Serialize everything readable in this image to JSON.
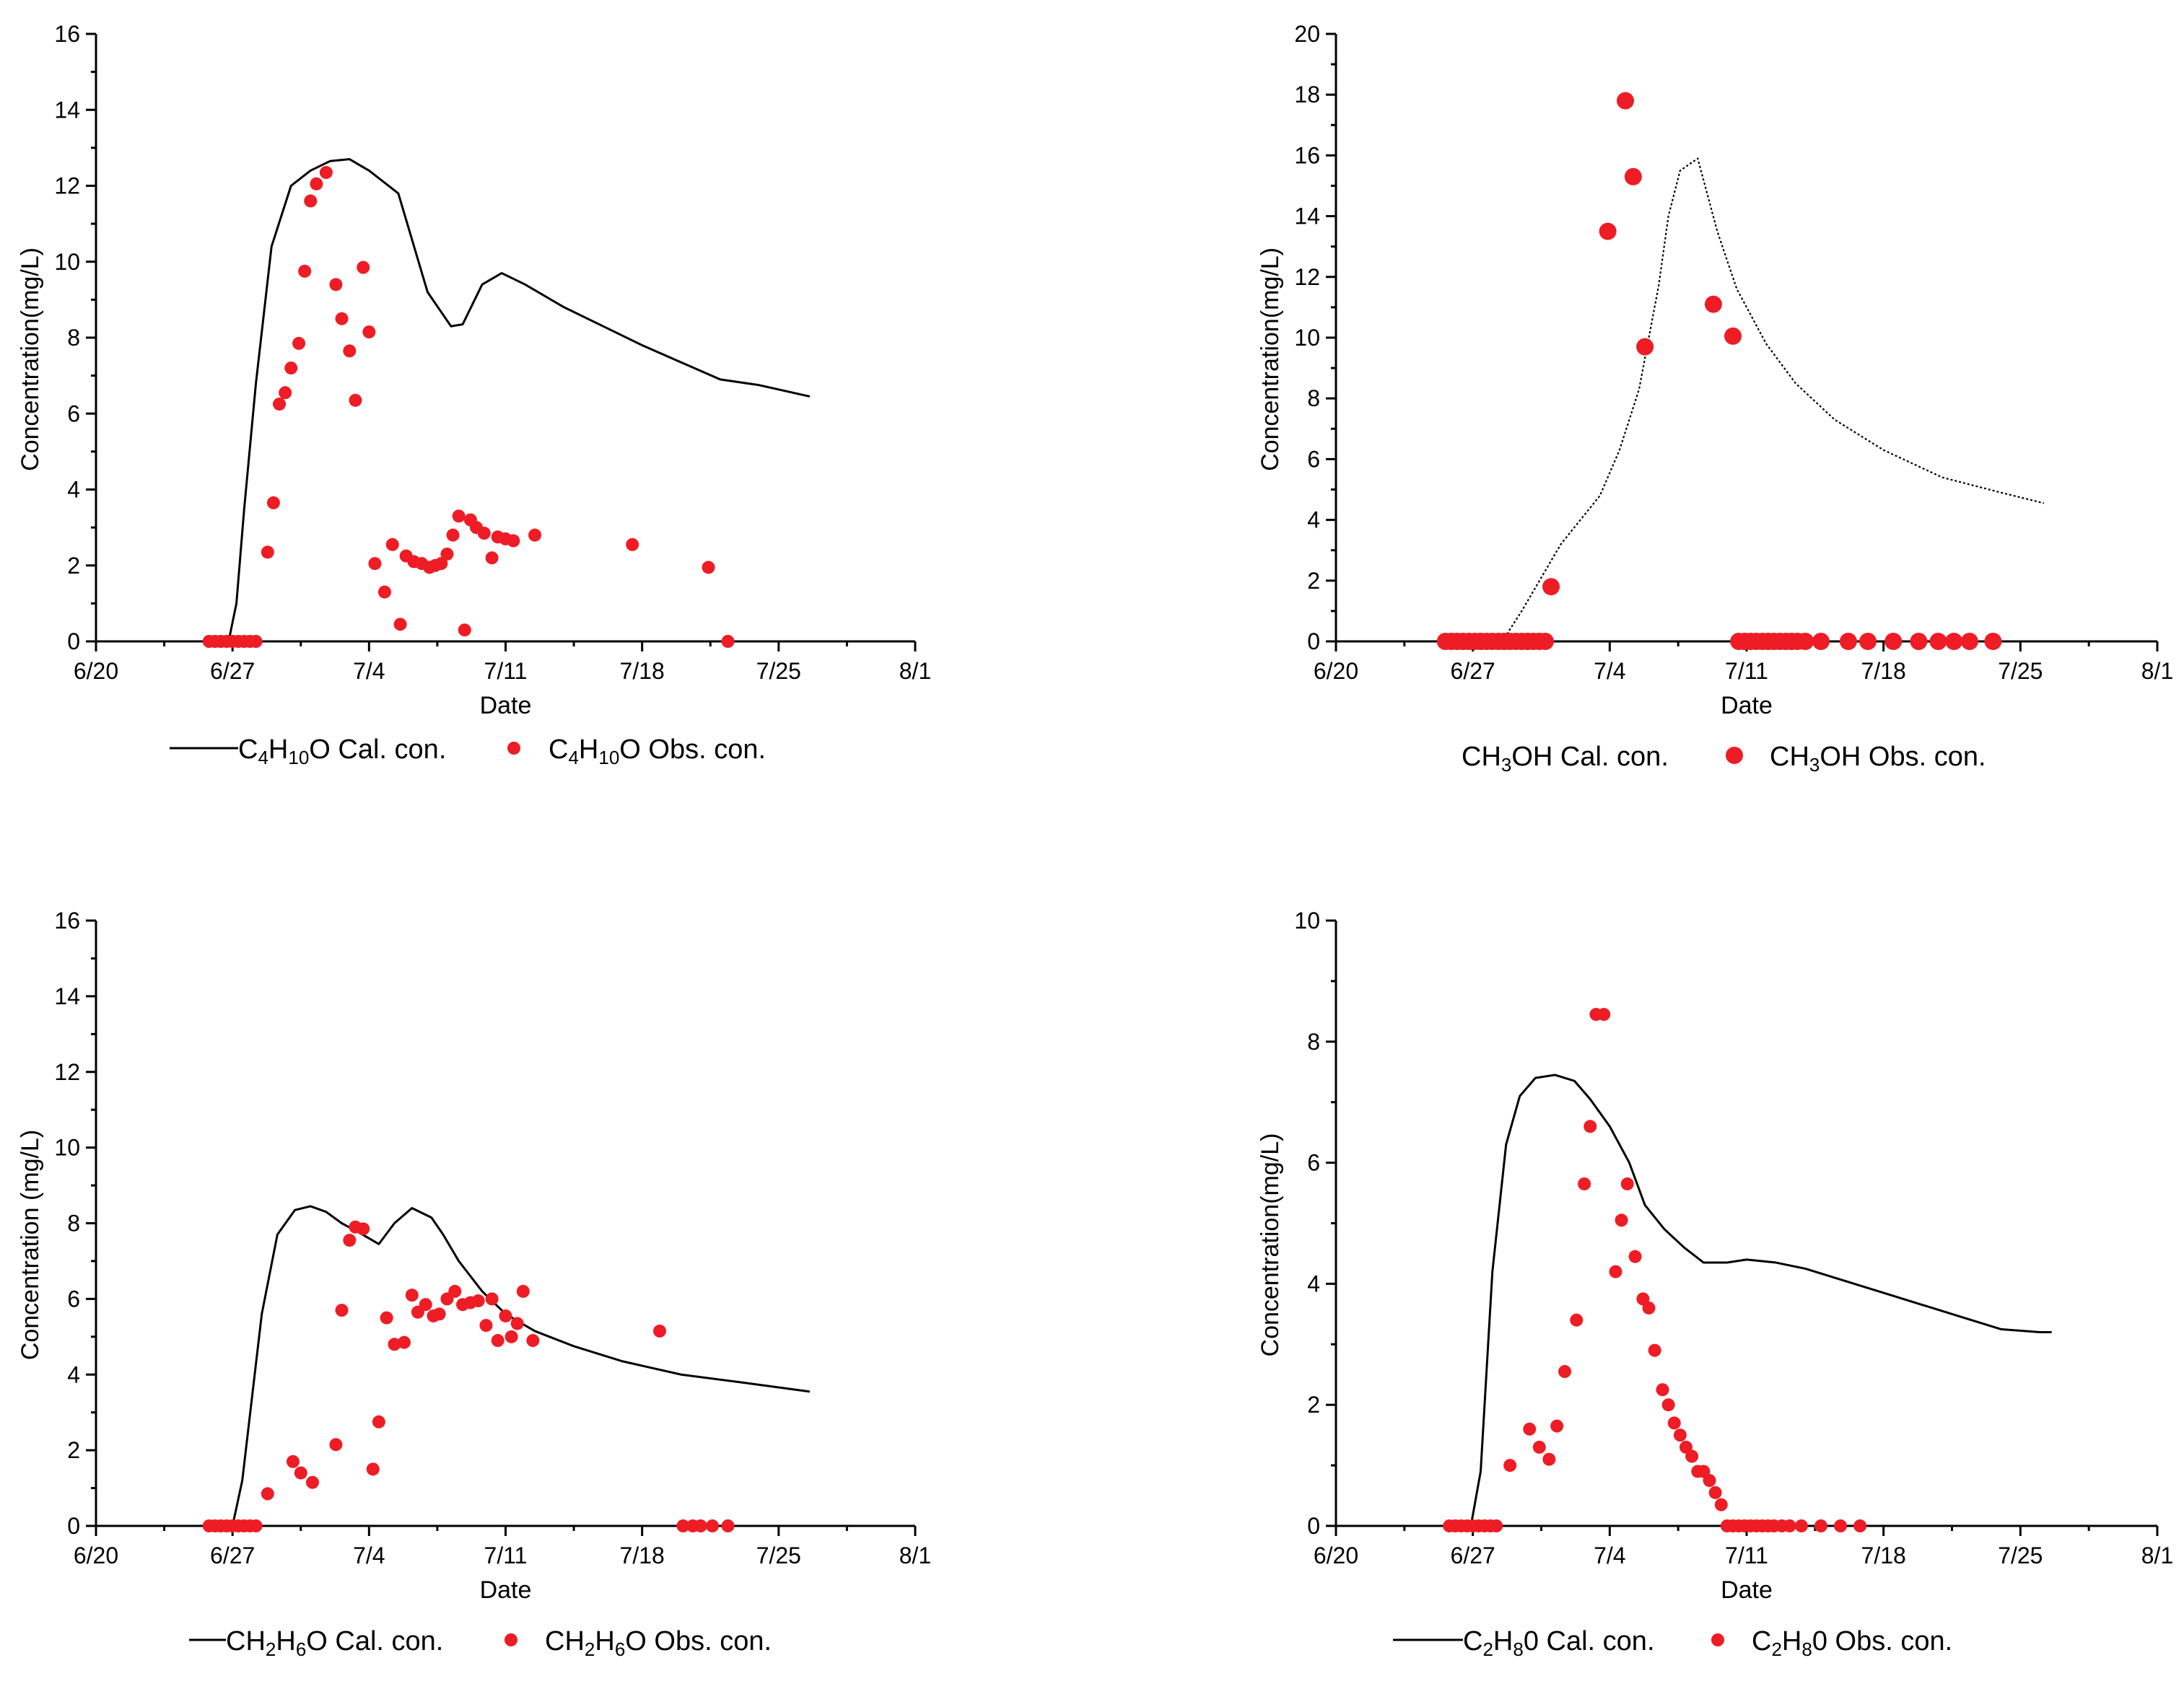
{
  "figure": {
    "x_tick_labels": [
      "6/20",
      "6/27",
      "7/4",
      "7/11",
      "7/18",
      "7/25",
      "8/1"
    ],
    "colors": {
      "observed": "#ee1c25",
      "line": "#000000"
    }
  },
  "chart_data": [
    {
      "type": "line+scatter",
      "xlabel": "Date",
      "ylabel": "Concentration(mg/L)",
      "xlim": [
        0,
        42
      ],
      "ylim": [
        0,
        16
      ],
      "yticks": [
        0,
        2,
        4,
        6,
        8,
        10,
        12,
        14,
        16
      ],
      "legend_position": "bottom",
      "legend": [
        {
          "kind": "line",
          "formula": [
            "C",
            "4",
            "H",
            "10",
            "O"
          ],
          "suffix": " Cal. con."
        },
        {
          "kind": "point",
          "formula": [
            "C",
            "4",
            "H",
            "10",
            "O"
          ],
          "suffix": " Obs. con."
        }
      ],
      "series": [
        {
          "name": "C4H10O Cal. con.",
          "kind": "line",
          "dash": "",
          "x": [
            6.8,
            7.2,
            7.6,
            8.2,
            9.0,
            10.0,
            11.0,
            12.0,
            13.0,
            14.0,
            15.5,
            17.0,
            18.2,
            18.8,
            19.8,
            20.8,
            22.0,
            24.0,
            26.0,
            28.0,
            30.0,
            32.0,
            34.0,
            36.6
          ],
          "y": [
            0.0,
            1.0,
            3.5,
            6.8,
            10.4,
            12.0,
            12.4,
            12.65,
            12.7,
            12.4,
            11.8,
            9.2,
            8.3,
            8.35,
            9.4,
            9.7,
            9.4,
            8.8,
            8.3,
            7.8,
            7.35,
            6.9,
            6.75,
            6.45
          ]
        },
        {
          "name": "C4H10O Obs. con.",
          "kind": "points",
          "size": 9,
          "x": [
            5.8,
            6.1,
            6.4,
            6.7,
            7.0,
            7.3,
            7.6,
            7.9,
            8.2,
            8.8,
            9.1,
            9.4,
            9.7,
            10.0,
            10.4,
            10.7,
            11.0,
            11.3,
            11.8,
            12.3,
            12.6,
            13.0,
            13.3,
            13.7,
            14.0,
            14.3,
            14.8,
            15.2,
            15.6,
            15.9,
            16.3,
            16.7,
            17.1,
            17.4,
            17.7,
            18.0,
            18.3,
            18.6,
            18.9,
            19.2,
            19.5,
            19.9,
            20.3,
            20.6,
            21.0,
            21.4,
            22.5,
            27.5,
            31.4,
            32.4
          ],
          "y": [
            0,
            0,
            0,
            0,
            0,
            0,
            0,
            0,
            0,
            2.35,
            3.65,
            6.25,
            6.55,
            7.2,
            7.85,
            9.75,
            11.6,
            12.05,
            12.35,
            9.4,
            8.5,
            7.65,
            6.35,
            9.85,
            8.15,
            2.05,
            1.3,
            2.55,
            0.45,
            2.25,
            2.1,
            2.05,
            1.95,
            2.0,
            2.05,
            2.3,
            2.8,
            3.3,
            0.3,
            3.2,
            3.0,
            2.85,
            2.2,
            2.75,
            2.7,
            2.65,
            2.8,
            2.55,
            1.95,
            0.0
          ]
        }
      ]
    },
    {
      "type": "line+scatter",
      "xlabel": "Date",
      "ylabel": "Concentration(mg/L)",
      "xlim": [
        0,
        42
      ],
      "ylim": [
        0,
        20
      ],
      "yticks": [
        0,
        2,
        4,
        6,
        8,
        10,
        12,
        14,
        16,
        18,
        20
      ],
      "legend_position": "bottom",
      "legend": [
        {
          "kind": "none",
          "formula": [
            "CH",
            "3",
            "OH"
          ],
          "suffix": " Cal. con."
        },
        {
          "kind": "point",
          "formula": [
            "CH",
            "3",
            "OH"
          ],
          "suffix": " Obs. con."
        }
      ],
      "series": [
        {
          "name": "CH3OH Cal. con.",
          "kind": "line",
          "dash": "3 3",
          "x": [
            8.5,
            9.5,
            10.5,
            11.5,
            12.5,
            13.5,
            14.5,
            15.5,
            16.5,
            17.0,
            17.6,
            18.5,
            19.5,
            20.5,
            22.0,
            23.5,
            25.5,
            28.0,
            31.0,
            34.0,
            36.2
          ],
          "y": [
            0.0,
            1.0,
            2.1,
            3.2,
            4.0,
            4.8,
            6.3,
            8.3,
            11.7,
            14.0,
            15.5,
            15.9,
            13.5,
            11.6,
            9.8,
            8.5,
            7.3,
            6.3,
            5.4,
            4.9,
            4.55
          ]
        },
        {
          "name": "CH3OH Obs. con.",
          "kind": "points",
          "size": 12,
          "x": [
            5.6,
            5.9,
            6.2,
            6.5,
            6.8,
            7.1,
            7.4,
            7.7,
            8.0,
            8.3,
            8.6,
            8.9,
            9.2,
            9.5,
            9.8,
            10.1,
            10.4,
            10.7,
            11.0,
            13.9,
            14.8,
            15.2,
            15.8,
            19.3,
            20.3,
            20.6,
            20.9,
            21.2,
            21.5,
            21.8,
            22.1,
            22.4,
            22.7,
            23.0,
            23.3,
            23.6,
            24.0,
            24.8,
            26.2,
            27.2,
            28.5,
            29.8,
            30.8,
            31.6,
            32.4,
            33.6
          ],
          "y": [
            0,
            0,
            0,
            0,
            0,
            0,
            0,
            0,
            0,
            0,
            0,
            0,
            0,
            0,
            0,
            0,
            0,
            0,
            1.8,
            13.5,
            17.8,
            15.3,
            9.7,
            11.1,
            10.05,
            0,
            0,
            0,
            0,
            0,
            0,
            0,
            0,
            0,
            0,
            0,
            0,
            0,
            0,
            0,
            0,
            0,
            0,
            0,
            0,
            0
          ]
        }
      ]
    },
    {
      "type": "line+scatter",
      "xlabel": "Date",
      "ylabel": "Concentration (mg/L)",
      "xlim": [
        0,
        42
      ],
      "ylim": [
        0,
        16
      ],
      "yticks": [
        0,
        2,
        4,
        6,
        8,
        10,
        12,
        14,
        16
      ],
      "legend_position": "bottom",
      "legend": [
        {
          "kind": "line",
          "formula": [
            "CH",
            "2",
            "H",
            "6",
            "O"
          ],
          "suffix": " Cal. con."
        },
        {
          "kind": "point",
          "formula": [
            "CH",
            "2",
            "H",
            "6",
            "O"
          ],
          "suffix": " Obs. con."
        }
      ],
      "series": [
        {
          "name": "CH2H6O Cal. con.",
          "kind": "line",
          "dash": "",
          "x": [
            7.0,
            7.5,
            8.0,
            8.5,
            9.3,
            10.2,
            11.0,
            11.8,
            12.6,
            13.5,
            14.5,
            15.3,
            16.2,
            17.2,
            17.8,
            18.6,
            19.8,
            21.0,
            22.5,
            24.5,
            27.0,
            30.0,
            33.0,
            36.6
          ],
          "y": [
            0.0,
            1.2,
            3.4,
            5.6,
            7.7,
            8.35,
            8.45,
            8.3,
            8.0,
            7.75,
            7.45,
            8.0,
            8.4,
            8.15,
            7.7,
            7.0,
            6.2,
            5.6,
            5.15,
            4.75,
            4.35,
            4.0,
            3.8,
            3.55
          ]
        },
        {
          "name": "CH2H6O Obs. con.",
          "kind": "points",
          "size": 9,
          "x": [
            5.8,
            6.1,
            6.4,
            6.7,
            7.0,
            7.3,
            7.6,
            7.9,
            8.2,
            8.8,
            10.1,
            10.5,
            11.1,
            12.3,
            12.6,
            13.0,
            13.3,
            13.7,
            14.2,
            14.5,
            14.9,
            15.3,
            15.8,
            16.2,
            16.5,
            16.9,
            17.3,
            17.6,
            18.0,
            18.4,
            18.8,
            19.2,
            19.6,
            20.0,
            20.3,
            20.6,
            21.0,
            21.3,
            21.6,
            21.9,
            22.4,
            28.9,
            30.1,
            30.6,
            31.0,
            31.6,
            32.4
          ],
          "y": [
            0,
            0,
            0,
            0,
            0,
            0,
            0,
            0,
            0,
            0.85,
            1.7,
            1.4,
            1.15,
            2.15,
            5.7,
            7.55,
            7.9,
            7.85,
            1.5,
            2.75,
            5.5,
            4.8,
            4.85,
            6.1,
            5.65,
            5.85,
            5.55,
            5.6,
            6.0,
            6.2,
            5.85,
            5.9,
            5.95,
            5.3,
            6.0,
            4.9,
            5.55,
            5.0,
            5.35,
            6.2,
            4.9,
            5.15,
            0,
            0,
            0,
            0,
            0
          ]
        }
      ]
    },
    {
      "type": "line+scatter",
      "xlabel": "Date",
      "ylabel": "Concentration(mg/L)",
      "xlim": [
        0,
        42
      ],
      "ylim": [
        0,
        10
      ],
      "yticks": [
        0,
        2,
        4,
        6,
        8,
        10
      ],
      "legend_position": "bottom",
      "legend": [
        {
          "kind": "line",
          "formula": [
            "C",
            "2",
            "H",
            "8",
            "0"
          ],
          "suffix": " Cal. con."
        },
        {
          "kind": "point",
          "formula": [
            "C",
            "2",
            "H",
            "8",
            "0"
          ],
          "suffix": " Obs. con."
        }
      ],
      "series": [
        {
          "name": "C2H80 Cal. con.",
          "kind": "line",
          "dash": "",
          "x": [
            6.9,
            7.4,
            8.0,
            8.7,
            9.4,
            10.2,
            11.2,
            12.2,
            13.0,
            14.0,
            15.0,
            15.8,
            16.8,
            17.8,
            18.8,
            20.0,
            21.0,
            22.5,
            24.0,
            26.0,
            28.0,
            30.0,
            32.0,
            34.0,
            36.0,
            36.6
          ],
          "y": [
            0.0,
            0.9,
            4.2,
            6.3,
            7.1,
            7.4,
            7.45,
            7.35,
            7.05,
            6.6,
            6.0,
            5.3,
            4.9,
            4.6,
            4.35,
            4.35,
            4.4,
            4.35,
            4.25,
            4.05,
            3.85,
            3.65,
            3.45,
            3.25,
            3.2,
            3.2
          ]
        },
        {
          "name": "C2H80 Obs. con.",
          "kind": "points",
          "size": 9,
          "x": [
            5.8,
            6.1,
            6.4,
            6.7,
            7.0,
            7.3,
            7.6,
            7.9,
            8.2,
            8.9,
            9.9,
            10.4,
            10.9,
            11.3,
            11.7,
            12.3,
            12.7,
            13.0,
            13.3,
            13.7,
            14.3,
            14.6,
            14.9,
            15.3,
            15.7,
            16.0,
            16.3,
            16.7,
            17.0,
            17.3,
            17.6,
            17.9,
            18.2,
            18.5,
            18.8,
            19.1,
            19.4,
            19.7,
            20.0,
            20.3,
            20.6,
            20.9,
            21.2,
            21.5,
            21.8,
            22.1,
            22.4,
            22.8,
            23.2,
            23.8,
            24.8,
            25.8,
            26.8
          ],
          "y": [
            0,
            0,
            0,
            0,
            0,
            0,
            0,
            0,
            0,
            1.0,
            1.6,
            1.3,
            1.1,
            1.65,
            2.55,
            3.4,
            5.65,
            6.6,
            8.45,
            8.45,
            4.2,
            5.05,
            5.65,
            4.45,
            3.75,
            3.6,
            2.9,
            2.25,
            2.0,
            1.7,
            1.5,
            1.3,
            1.15,
            0.9,
            0.9,
            0.75,
            0.55,
            0.35,
            0,
            0,
            0,
            0,
            0,
            0,
            0,
            0,
            0,
            0,
            0,
            0,
            0,
            0,
            0
          ]
        }
      ]
    }
  ]
}
